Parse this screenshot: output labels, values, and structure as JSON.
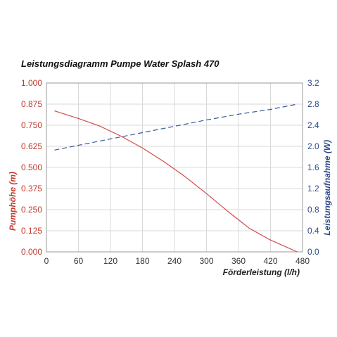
{
  "chart_data": {
    "type": "line",
    "title": "Leistungsdiagramm Pumpe Water Splash 470",
    "xlabel": "Förderleistung (l/h)",
    "ylabel_left": "Pumphöhe (m)",
    "ylabel_right": "Leistungsaufnahme (W)",
    "xlim": [
      0,
      480
    ],
    "ylim_left": [
      0,
      1
    ],
    "ylim_right": [
      0,
      3.2
    ],
    "x_ticks": [
      "0",
      "60",
      "120",
      "180",
      "240",
      "300",
      "360",
      "420",
      "480"
    ],
    "y_left_ticks": [
      "0.000",
      "0.125",
      "0.250",
      "0.375",
      "0.500",
      "0.625",
      "0.750",
      "0.875",
      "1.000"
    ],
    "y_right_ticks": [
      "0.0",
      "0.4",
      "0.8",
      "1.2",
      "1.6",
      "2.0",
      "2.4",
      "2.8",
      "3.2"
    ],
    "grid": true,
    "colors": {
      "left_axis": "#c0392b",
      "right_axis": "#2e4a8a",
      "pump_head": "#d24a4a",
      "power": "#3a5a99"
    },
    "series": [
      {
        "axis": "left",
        "style": "solid",
        "x": [
          15,
          60,
          100,
          140,
          180,
          220,
          260,
          300,
          340,
          380,
          420,
          470
        ],
        "y": [
          0.835,
          0.79,
          0.745,
          0.685,
          0.615,
          0.535,
          0.445,
          0.345,
          0.24,
          0.14,
          0.07,
          0.0
        ]
      },
      {
        "axis": "right",
        "style": "dashed",
        "x": [
          15,
          60,
          120,
          180,
          240,
          300,
          360,
          420,
          470
        ],
        "y": [
          1.93,
          2.02,
          2.14,
          2.26,
          2.38,
          2.5,
          2.61,
          2.7,
          2.8
        ]
      }
    ]
  }
}
